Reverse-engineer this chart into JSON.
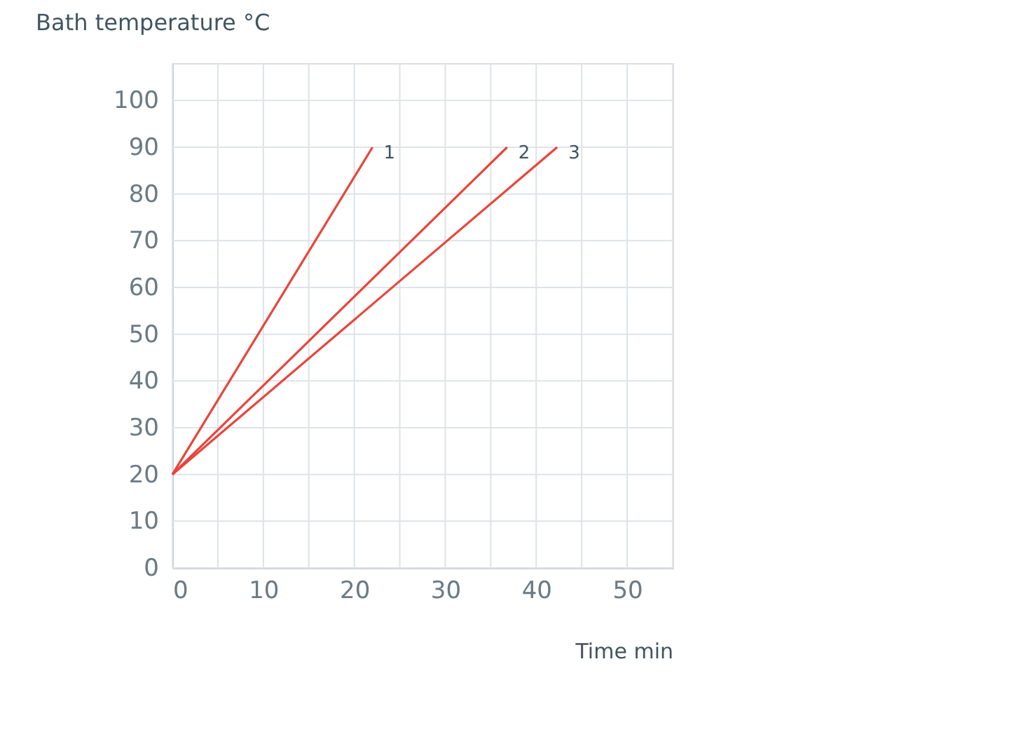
{
  "chart_data": {
    "type": "line",
    "ylabel": "Bath temperature °C",
    "xlabel": "Time min",
    "series": [
      {
        "color": "#e8453c",
        "x": [
          0,
          22
        ],
        "values": [
          20,
          90
        ]
      },
      {
        "color": "#e8453c",
        "x": [
          0,
          36.8
        ],
        "values": [
          20,
          90
        ]
      },
      {
        "color": "#e8453c",
        "x": [
          0,
          42.3
        ],
        "values": [
          20,
          90
        ]
      }
    ],
    "annotations": [
      {
        "text": "1",
        "x": 22,
        "y": 90
      },
      {
        "text": "2",
        "x": 36.8,
        "y": 90
      },
      {
        "text": "3",
        "x": 42.3,
        "y": 90
      }
    ],
    "xlim": [
      0,
      55
    ],
    "ylim": [
      0,
      108
    ],
    "xticks": [
      0,
      {
        "value": 5,
        "label": null
      },
      10,
      {
        "value": 15,
        "label": null
      },
      20,
      {
        "value": 25,
        "label": null
      },
      30,
      {
        "value": 35,
        "label": null
      },
      40,
      {
        "value": 45,
        "label": null
      },
      50,
      {
        "value": 55,
        "label": null
      }
    ],
    "yticks": [
      0,
      10,
      20,
      30,
      40,
      50,
      60,
      70,
      80,
      90,
      100
    ],
    "grid": true,
    "marker": "none",
    "line_style": "solid"
  }
}
